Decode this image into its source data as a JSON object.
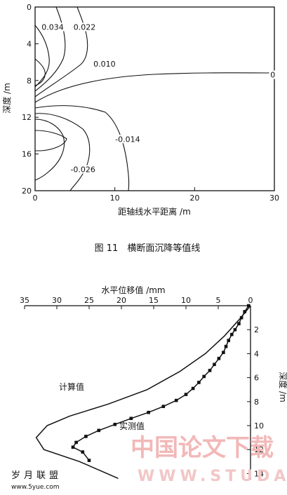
{
  "chart_data": [
    {
      "type": "contour",
      "title": "",
      "caption": "图 11　横断面沉降等值线",
      "xlabel": "距轴线水平距离 /m",
      "ylabel": "深度 /m",
      "xlim": [
        0,
        30
      ],
      "ylim": [
        0,
        20
      ],
      "y_inverted": true,
      "xticks": [
        "0",
        "10",
        "20",
        "30"
      ],
      "yticks": [
        "0",
        "4",
        "8",
        "12",
        "16",
        "20"
      ],
      "contour_labels": [
        {
          "text": "0.034",
          "x": 2.2,
          "y": 2.4
        },
        {
          "text": "0.022",
          "x": 6.2,
          "y": 2.4
        },
        {
          "text": "0.010",
          "x": 8.7,
          "y": 6.4
        },
        {
          "text": "0",
          "x": 29.8,
          "y": 7.6
        },
        {
          "text": "-0.014",
          "x": 11.6,
          "y": 14.6
        },
        {
          "text": "-0.026",
          "x": 6.0,
          "y": 17.9
        }
      ]
    },
    {
      "type": "line",
      "title": "",
      "xlabel": "水平位移值 /mm",
      "ylabel": "深度 /m",
      "xlim": [
        0,
        35
      ],
      "x_reversed": true,
      "ylim": [
        0,
        14.5
      ],
      "y_inverted": true,
      "xticks": [
        "35",
        "30",
        "25",
        "20",
        "15",
        "10",
        "5",
        "0"
      ],
      "yticks": [
        "2",
        "4",
        "6",
        "8",
        "10",
        "12",
        "14"
      ],
      "series": [
        {
          "name": "计算值",
          "marker": "none",
          "points": [
            [
              0,
              0
            ],
            [
              1.5,
              1
            ],
            [
              4,
              2.5
            ],
            [
              7,
              4
            ],
            [
              11,
              5.5
            ],
            [
              16,
              7
            ],
            [
              22,
              8.2
            ],
            [
              28,
              9.2
            ],
            [
              31.5,
              10
            ],
            [
              33.2,
              11
            ],
            [
              32,
              12
            ],
            [
              26.5,
              13
            ],
            [
              20.5,
              14.4
            ]
          ]
        },
        {
          "name": "实测值",
          "marker": "square",
          "points": [
            [
              0.3,
              0
            ],
            [
              0.9,
              0.5
            ],
            [
              1.4,
              1
            ],
            [
              1.8,
              1.5
            ],
            [
              2.4,
              2
            ],
            [
              2.9,
              2.4
            ],
            [
              3.4,
              2.9
            ],
            [
              3.8,
              3.4
            ],
            [
              4.2,
              3.9
            ],
            [
              4.9,
              4.4
            ],
            [
              5.6,
              4.9
            ],
            [
              6.3,
              5.4
            ],
            [
              7.2,
              5.9
            ],
            [
              8.0,
              6.4
            ],
            [
              8.9,
              6.9
            ],
            [
              10.0,
              7.4
            ],
            [
              11.5,
              7.9
            ],
            [
              13.5,
              8.4
            ],
            [
              15.8,
              8.9
            ],
            [
              18.5,
              9.4
            ],
            [
              21.0,
              9.9
            ],
            [
              23.5,
              10.4
            ],
            [
              25.5,
              10.9
            ],
            [
              27.0,
              11.4
            ],
            [
              27.5,
              11.8
            ],
            [
              26.0,
              12.2
            ],
            [
              25.0,
              12.9
            ]
          ]
        }
      ]
    }
  ],
  "watermark": {
    "main": "中国论文下载",
    "url": "WWW.STUDA.",
    "logo": "岁月联盟",
    "site": "www.5yue.com"
  }
}
